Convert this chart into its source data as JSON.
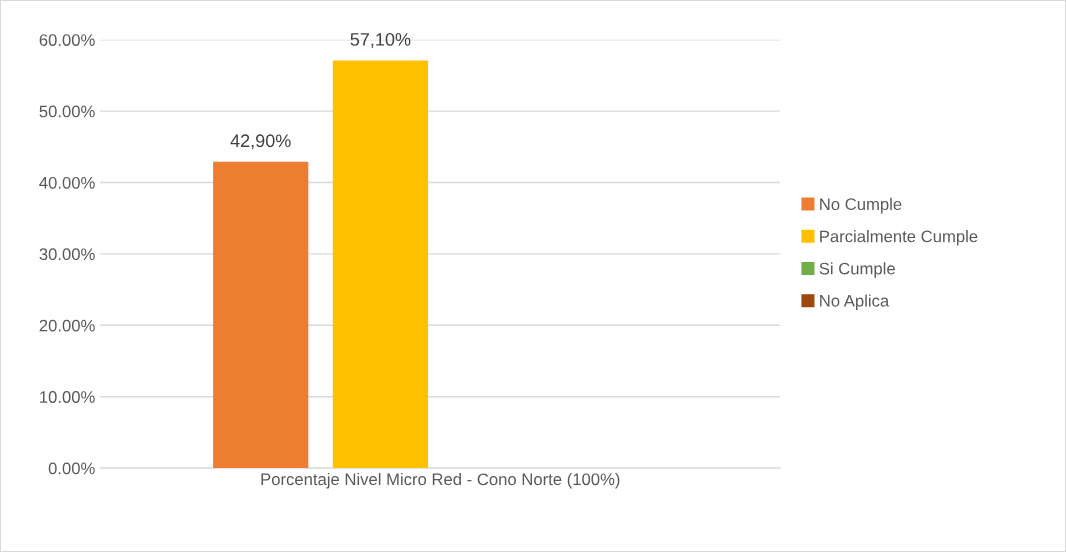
{
  "chart_data": {
    "type": "bar",
    "categories": [
      "Porcentaje Nivel Micro Red - Cono Norte (100%)"
    ],
    "series": [
      {
        "name": "No Cumple",
        "color": "#ed7d31",
        "values": [
          42.9
        ],
        "value_labels": [
          "42,90%"
        ]
      },
      {
        "name": "Parcialmente Cumple",
        "color": "#ffc000",
        "values": [
          57.1
        ],
        "value_labels": [
          "57,10%"
        ]
      },
      {
        "name": "Si Cumple",
        "color": "#70ad47",
        "values": [
          0
        ],
        "value_labels": [
          null
        ]
      },
      {
        "name": "No Aplica",
        "color": "#9e480e",
        "values": [
          0
        ],
        "value_labels": [
          null
        ]
      }
    ],
    "ylim": [
      0,
      60
    ],
    "yticks": [
      {
        "value": 0,
        "label": "0.00%"
      },
      {
        "value": 10,
        "label": "10.00%"
      },
      {
        "value": 20,
        "label": "20.00%"
      },
      {
        "value": 30,
        "label": "30.00%"
      },
      {
        "value": 40,
        "label": "40.00%"
      },
      {
        "value": 50,
        "label": "50.00%"
      },
      {
        "value": 60,
        "label": "60.00%"
      }
    ],
    "grid": "y",
    "legend": "right"
  }
}
